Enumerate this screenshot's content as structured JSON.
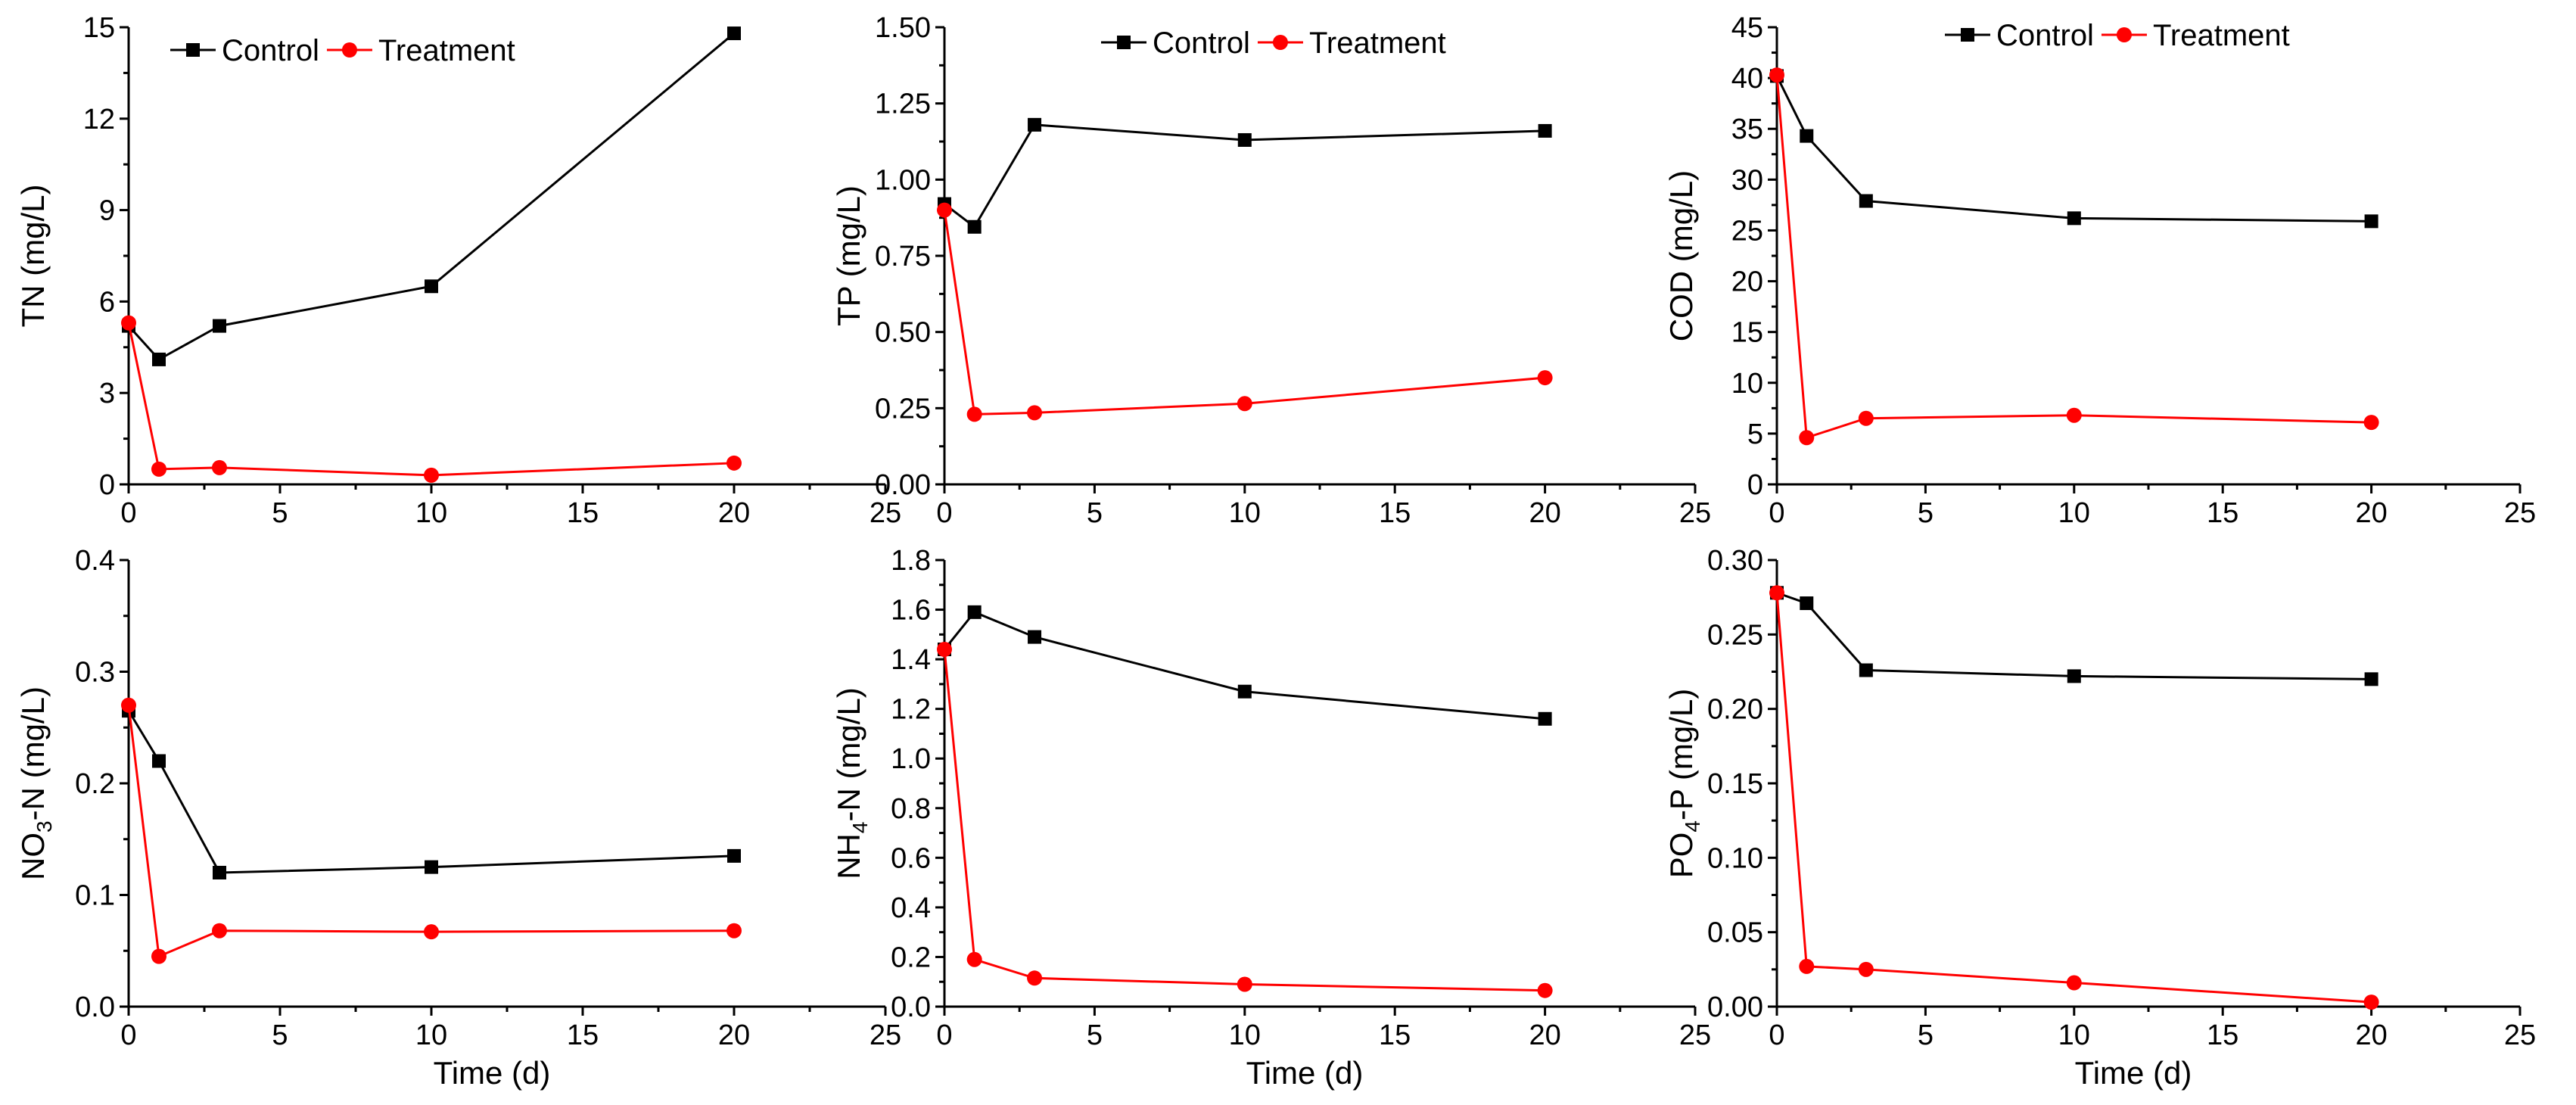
{
  "colors": {
    "control": "#000000",
    "treatment": "#ff0000"
  },
  "chart_data": [
    {
      "type": "line",
      "ylabel": "TN (mg/L)",
      "ylabel_sub": "",
      "ylabel_rest": "",
      "xlabel": "",
      "xlim": [
        0,
        25
      ],
      "ylim": [
        0,
        15
      ],
      "xticks": [
        "0",
        "5",
        "10",
        "15",
        "20",
        "25"
      ],
      "yticks": [
        "0",
        "3",
        "6",
        "9",
        "12",
        "15"
      ],
      "legend": "top",
      "grid": false,
      "series": [
        {
          "name": "Control",
          "marker": "square",
          "x": [
            0,
            1,
            3,
            10,
            20
          ],
          "values": [
            5.2,
            4.1,
            5.2,
            6.5,
            14.8
          ]
        },
        {
          "name": "Treatment",
          "marker": "circle",
          "x": [
            0,
            1,
            3,
            10,
            20
          ],
          "values": [
            5.3,
            0.5,
            0.55,
            0.3,
            0.7
          ]
        }
      ]
    },
    {
      "type": "line",
      "ylabel": "TP (mg/L)",
      "ylabel_sub": "",
      "ylabel_rest": "",
      "xlabel": "",
      "xlim": [
        0,
        25
      ],
      "ylim": [
        0,
        1.5
      ],
      "xticks": [
        "0",
        "5",
        "10",
        "15",
        "20",
        "25"
      ],
      "yticks": [
        "0.00",
        "0.25",
        "0.50",
        "0.75",
        "1.00",
        "1.25",
        "1.50"
      ],
      "legend": "top",
      "grid": false,
      "series": [
        {
          "name": "Control",
          "marker": "square",
          "x": [
            0,
            1,
            3,
            10,
            20
          ],
          "values": [
            0.92,
            0.845,
            1.18,
            1.13,
            1.16
          ]
        },
        {
          "name": "Treatment",
          "marker": "circle",
          "x": [
            0,
            1,
            3,
            10,
            20
          ],
          "values": [
            0.9,
            0.23,
            0.235,
            0.265,
            0.35
          ]
        }
      ]
    },
    {
      "type": "line",
      "ylabel": "COD (mg/L)",
      "ylabel_sub": "",
      "ylabel_rest": "",
      "xlabel": "",
      "xlim": [
        0,
        25
      ],
      "ylim": [
        0,
        45
      ],
      "xticks": [
        "0",
        "5",
        "10",
        "15",
        "20",
        "25"
      ],
      "yticks": [
        "0",
        "5",
        "10",
        "15",
        "20",
        "25",
        "30",
        "35",
        "40",
        "45"
      ],
      "legend": "top",
      "grid": false,
      "series": [
        {
          "name": "Control",
          "marker": "square",
          "x": [
            0,
            1,
            3,
            10,
            20
          ],
          "values": [
            40.2,
            34.3,
            27.9,
            26.2,
            25.9
          ]
        },
        {
          "name": "Treatment",
          "marker": "circle",
          "x": [
            0,
            1,
            3,
            10,
            20
          ],
          "values": [
            40.3,
            4.6,
            6.5,
            6.8,
            6.1
          ]
        }
      ]
    },
    {
      "type": "line",
      "ylabel": "NO",
      "ylabel_sub": "3",
      "ylabel_rest": "-N (mg/L)",
      "xlabel": "Time (d)",
      "xlim": [
        0,
        25
      ],
      "ylim": [
        0,
        0.4
      ],
      "xticks": [
        "0",
        "5",
        "10",
        "15",
        "20",
        "25"
      ],
      "yticks": [
        "0.0",
        "0.1",
        "0.2",
        "0.3",
        "0.4"
      ],
      "legend": "none",
      "grid": false,
      "series": [
        {
          "name": "Control",
          "marker": "square",
          "x": [
            0,
            1,
            3,
            10,
            20
          ],
          "values": [
            0.265,
            0.22,
            0.12,
            0.125,
            0.135
          ]
        },
        {
          "name": "Treatment",
          "marker": "circle",
          "x": [
            0,
            1,
            3,
            10,
            20
          ],
          "values": [
            0.27,
            0.045,
            0.068,
            0.067,
            0.068
          ]
        }
      ]
    },
    {
      "type": "line",
      "ylabel": "NH",
      "ylabel_sub": "4",
      "ylabel_rest": "-N (mg/L)",
      "xlabel": "Time (d)",
      "xlim": [
        0,
        25
      ],
      "ylim": [
        0,
        1.8
      ],
      "xticks": [
        "0",
        "5",
        "10",
        "15",
        "20",
        "25"
      ],
      "yticks": [
        "0.0",
        "0.2",
        "0.4",
        "0.6",
        "0.8",
        "1.0",
        "1.2",
        "1.4",
        "1.6",
        "1.8"
      ],
      "legend": "none",
      "grid": false,
      "series": [
        {
          "name": "Control",
          "marker": "square",
          "x": [
            0,
            1,
            3,
            10,
            20
          ],
          "values": [
            1.44,
            1.59,
            1.49,
            1.27,
            1.16
          ]
        },
        {
          "name": "Treatment",
          "marker": "circle",
          "x": [
            0,
            1,
            3,
            10,
            20
          ],
          "values": [
            1.44,
            0.19,
            0.115,
            0.09,
            0.065
          ]
        }
      ]
    },
    {
      "type": "line",
      "ylabel": "PO",
      "ylabel_sub": "4",
      "ylabel_rest": "-P (mg/L)",
      "xlabel": "Time (d)",
      "xlim": [
        0,
        25
      ],
      "ylim": [
        0,
        0.3
      ],
      "xticks": [
        "0",
        "5",
        "10",
        "15",
        "20",
        "25"
      ],
      "yticks": [
        "0.00",
        "0.05",
        "0.10",
        "0.15",
        "0.20",
        "0.25",
        "0.30"
      ],
      "legend": "none",
      "grid": false,
      "series": [
        {
          "name": "Control",
          "marker": "square",
          "x": [
            0,
            1,
            3,
            10,
            20
          ],
          "values": [
            0.278,
            0.271,
            0.226,
            0.222,
            0.22
          ]
        },
        {
          "name": "Treatment",
          "marker": "circle",
          "x": [
            0,
            1,
            3,
            10,
            20
          ],
          "values": [
            0.278,
            0.027,
            0.025,
            0.016,
            0.003
          ]
        }
      ]
    }
  ]
}
